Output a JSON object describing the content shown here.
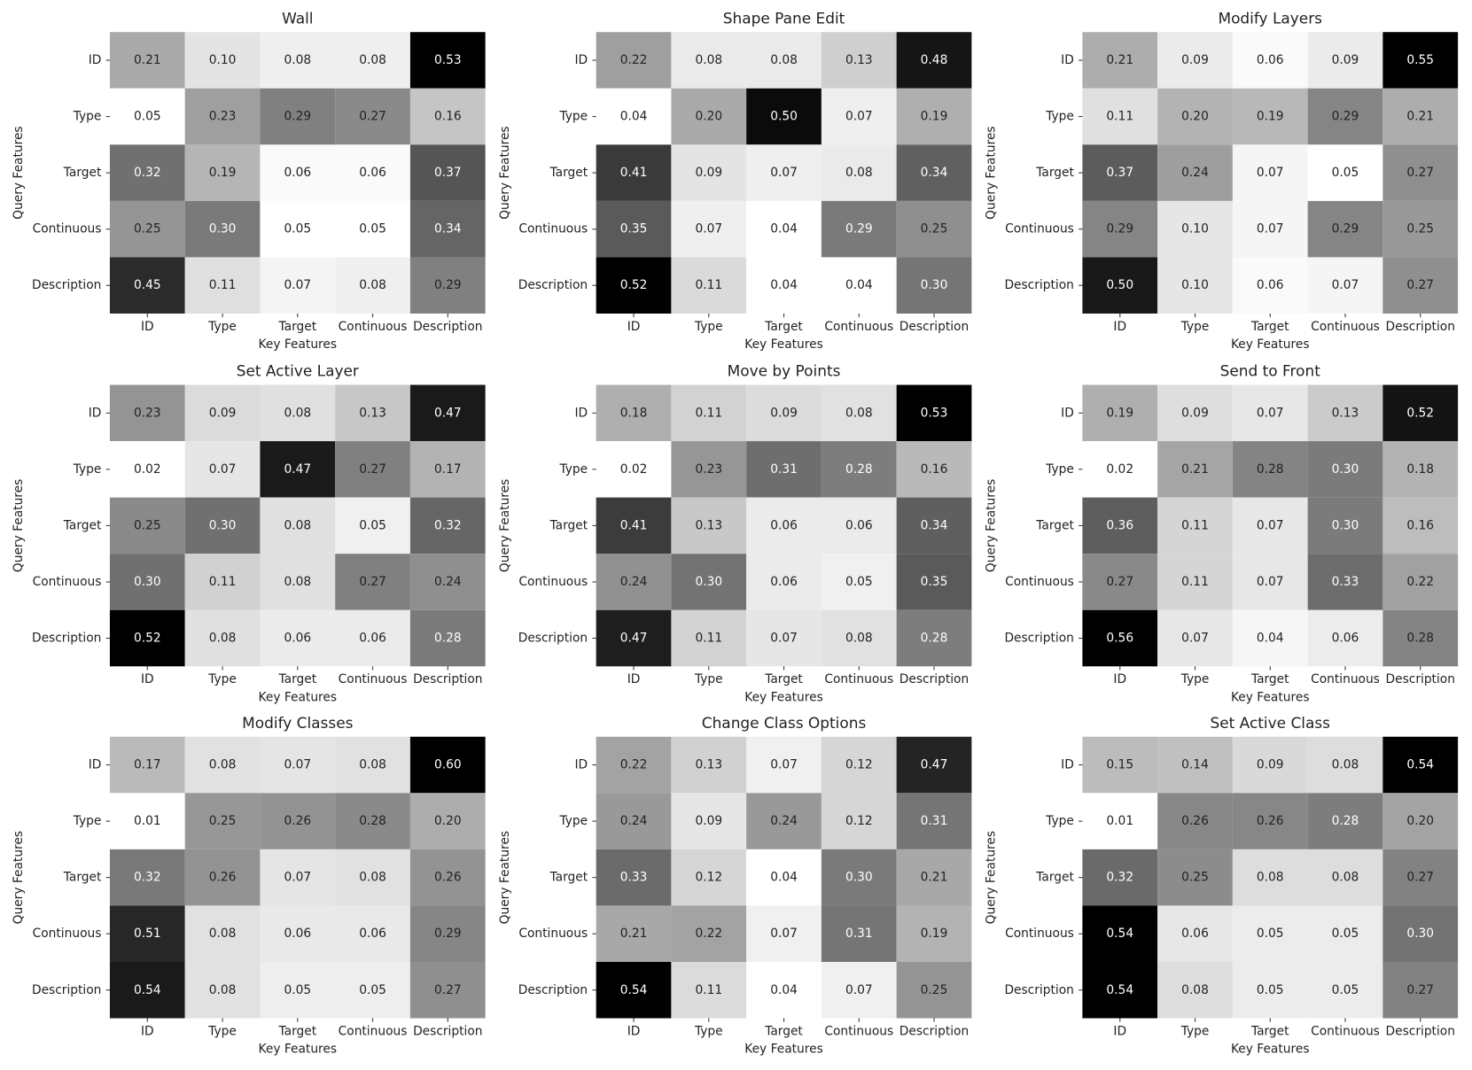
{
  "chart_data": [
    {
      "type": "heatmap",
      "title": "Wall",
      "xlabel": "Key Features",
      "ylabel": "Query Features",
      "x_categories": [
        "ID",
        "Type",
        "Target",
        "Continuous",
        "Description"
      ],
      "y_categories": [
        "ID",
        "Type",
        "Target",
        "Continuous",
        "Description"
      ],
      "values": [
        [
          0.21,
          0.1,
          0.08,
          0.08,
          0.53
        ],
        [
          0.05,
          0.23,
          0.29,
          0.27,
          0.16
        ],
        [
          0.32,
          0.19,
          0.06,
          0.06,
          0.37
        ],
        [
          0.25,
          0.3,
          0.05,
          0.05,
          0.34
        ],
        [
          0.45,
          0.11,
          0.07,
          0.08,
          0.29
        ]
      ],
      "value_labels": [
        [
          "0.21",
          "0.10",
          "0.08",
          "0.08",
          "0.53"
        ],
        [
          "0.05",
          "0.23",
          "0.29",
          "0.27",
          "0.16"
        ],
        [
          "0.32",
          "0.19",
          "0.06",
          "0.06",
          "0.37"
        ],
        [
          "0.25",
          "0.30",
          "0.05",
          "0.05",
          "0.34"
        ],
        [
          "0.45",
          "0.11",
          "0.07",
          "0.08",
          "0.29"
        ]
      ],
      "colormap": "Greys"
    },
    {
      "type": "heatmap",
      "title": "Shape Pane Edit",
      "xlabel": "Key Features",
      "ylabel": "Query Features",
      "x_categories": [
        "ID",
        "Type",
        "Target",
        "Continuous",
        "Description"
      ],
      "y_categories": [
        "ID",
        "Type",
        "Target",
        "Continuous",
        "Description"
      ],
      "values": [
        [
          0.22,
          0.08,
          0.08,
          0.13,
          0.48
        ],
        [
          0.04,
          0.2,
          0.5,
          0.07,
          0.19
        ],
        [
          0.41,
          0.09,
          0.07,
          0.08,
          0.34
        ],
        [
          0.35,
          0.07,
          0.04,
          0.29,
          0.25
        ],
        [
          0.52,
          0.11,
          0.04,
          0.04,
          0.3
        ]
      ],
      "value_labels": [
        [
          "0.22",
          "0.08",
          "0.08",
          "0.13",
          "0.48"
        ],
        [
          "0.04",
          "0.20",
          "0.50",
          "0.07",
          "0.19"
        ],
        [
          "0.41",
          "0.09",
          "0.07",
          "0.08",
          "0.34"
        ],
        [
          "0.35",
          "0.07",
          "0.04",
          "0.29",
          "0.25"
        ],
        [
          "0.52",
          "0.11",
          "0.04",
          "0.04",
          "0.30"
        ]
      ],
      "colormap": "Greys"
    },
    {
      "type": "heatmap",
      "title": "Modify Layers",
      "xlabel": "Key Features",
      "ylabel": "Query Features",
      "x_categories": [
        "ID",
        "Type",
        "Target",
        "Continuous",
        "Description"
      ],
      "y_categories": [
        "ID",
        "Type",
        "Target",
        "Continuous",
        "Description"
      ],
      "values": [
        [
          0.21,
          0.09,
          0.06,
          0.09,
          0.55
        ],
        [
          0.11,
          0.2,
          0.19,
          0.29,
          0.21
        ],
        [
          0.37,
          0.24,
          0.07,
          0.05,
          0.27
        ],
        [
          0.29,
          0.1,
          0.07,
          0.29,
          0.25
        ],
        [
          0.5,
          0.1,
          0.06,
          0.07,
          0.27
        ]
      ],
      "value_labels": [
        [
          "0.21",
          "0.09",
          "0.06",
          "0.09",
          "0.55"
        ],
        [
          "0.11",
          "0.20",
          "0.19",
          "0.29",
          "0.21"
        ],
        [
          "0.37",
          "0.24",
          "0.07",
          "0.05",
          "0.27"
        ],
        [
          "0.29",
          "0.10",
          "0.07",
          "0.29",
          "0.25"
        ],
        [
          "0.50",
          "0.10",
          "0.06",
          "0.07",
          "0.27"
        ]
      ],
      "colormap": "Greys"
    },
    {
      "type": "heatmap",
      "title": "Set Active Layer",
      "xlabel": "Key Features",
      "ylabel": "Query Features",
      "x_categories": [
        "ID",
        "Type",
        "Target",
        "Continuous",
        "Description"
      ],
      "y_categories": [
        "ID",
        "Type",
        "Target",
        "Continuous",
        "Description"
      ],
      "values": [
        [
          0.23,
          0.09,
          0.08,
          0.13,
          0.47
        ],
        [
          0.02,
          0.07,
          0.47,
          0.27,
          0.17
        ],
        [
          0.25,
          0.3,
          0.08,
          0.05,
          0.32
        ],
        [
          0.3,
          0.11,
          0.08,
          0.27,
          0.24
        ],
        [
          0.52,
          0.08,
          0.06,
          0.06,
          0.28
        ]
      ],
      "value_labels": [
        [
          "0.23",
          "0.09",
          "0.08",
          "0.13",
          "0.47"
        ],
        [
          "0.02",
          "0.07",
          "0.47",
          "0.27",
          "0.17"
        ],
        [
          "0.25",
          "0.30",
          "0.08",
          "0.05",
          "0.32"
        ],
        [
          "0.30",
          "0.11",
          "0.08",
          "0.27",
          "0.24"
        ],
        [
          "0.52",
          "0.08",
          "0.06",
          "0.06",
          "0.28"
        ]
      ],
      "colormap": "Greys"
    },
    {
      "type": "heatmap",
      "title": "Move by Points",
      "xlabel": "Key Features",
      "ylabel": "Query Features",
      "x_categories": [
        "ID",
        "Type",
        "Target",
        "Continuous",
        "Description"
      ],
      "y_categories": [
        "ID",
        "Type",
        "Target",
        "Continuous",
        "Description"
      ],
      "values": [
        [
          0.18,
          0.11,
          0.09,
          0.08,
          0.53
        ],
        [
          0.02,
          0.23,
          0.31,
          0.28,
          0.16
        ],
        [
          0.41,
          0.13,
          0.06,
          0.06,
          0.34
        ],
        [
          0.24,
          0.3,
          0.06,
          0.05,
          0.35
        ],
        [
          0.47,
          0.11,
          0.07,
          0.08,
          0.28
        ]
      ],
      "value_labels": [
        [
          "0.18",
          "0.11",
          "0.09",
          "0.08",
          "0.53"
        ],
        [
          "0.02",
          "0.23",
          "0.31",
          "0.28",
          "0.16"
        ],
        [
          "0.41",
          "0.13",
          "0.06",
          "0.06",
          "0.34"
        ],
        [
          "0.24",
          "0.30",
          "0.06",
          "0.05",
          "0.35"
        ],
        [
          "0.47",
          "0.11",
          "0.07",
          "0.08",
          "0.28"
        ]
      ],
      "colormap": "Greys"
    },
    {
      "type": "heatmap",
      "title": "Send to Front",
      "xlabel": "Key Features",
      "ylabel": "Query Features",
      "x_categories": [
        "ID",
        "Type",
        "Target",
        "Continuous",
        "Description"
      ],
      "y_categories": [
        "ID",
        "Type",
        "Target",
        "Continuous",
        "Description"
      ],
      "values": [
        [
          0.19,
          0.09,
          0.07,
          0.13,
          0.52
        ],
        [
          0.02,
          0.21,
          0.28,
          0.3,
          0.18
        ],
        [
          0.36,
          0.11,
          0.07,
          0.3,
          0.16
        ],
        [
          0.27,
          0.11,
          0.07,
          0.33,
          0.22
        ],
        [
          0.56,
          0.07,
          0.04,
          0.06,
          0.28
        ]
      ],
      "value_labels": [
        [
          "0.19",
          "0.09",
          "0.07",
          "0.13",
          "0.52"
        ],
        [
          "0.02",
          "0.21",
          "0.28",
          "0.30",
          "0.18"
        ],
        [
          "0.36",
          "0.11",
          "0.07",
          "0.30",
          "0.16"
        ],
        [
          "0.27",
          "0.11",
          "0.07",
          "0.33",
          "0.22"
        ],
        [
          "0.56",
          "0.07",
          "0.04",
          "0.06",
          "0.28"
        ]
      ],
      "colormap": "Greys"
    },
    {
      "type": "heatmap",
      "title": "Modify Classes",
      "xlabel": "Key Features",
      "ylabel": "Query Features",
      "x_categories": [
        "ID",
        "Type",
        "Target",
        "Continuous",
        "Description"
      ],
      "y_categories": [
        "ID",
        "Type",
        "Target",
        "Continuous",
        "Description"
      ],
      "values": [
        [
          0.17,
          0.08,
          0.07,
          0.08,
          0.6
        ],
        [
          0.01,
          0.25,
          0.26,
          0.28,
          0.2
        ],
        [
          0.32,
          0.26,
          0.07,
          0.08,
          0.26
        ],
        [
          0.51,
          0.08,
          0.06,
          0.06,
          0.29
        ],
        [
          0.54,
          0.08,
          0.05,
          0.05,
          0.27
        ]
      ],
      "value_labels": [
        [
          "0.17",
          "0.08",
          "0.07",
          "0.08",
          "0.60"
        ],
        [
          "0.01",
          "0.25",
          "0.26",
          "0.28",
          "0.20"
        ],
        [
          "0.32",
          "0.26",
          "0.07",
          "0.08",
          "0.26"
        ],
        [
          "0.51",
          "0.08",
          "0.06",
          "0.06",
          "0.29"
        ],
        [
          "0.54",
          "0.08",
          "0.05",
          "0.05",
          "0.27"
        ]
      ],
      "colormap": "Greys"
    },
    {
      "type": "heatmap",
      "title": "Change Class Options",
      "xlabel": "Key Features",
      "ylabel": "Query Features",
      "x_categories": [
        "ID",
        "Type",
        "Target",
        "Continuous",
        "Description"
      ],
      "y_categories": [
        "ID",
        "Type",
        "Target",
        "Continuous",
        "Description"
      ],
      "values": [
        [
          0.22,
          0.13,
          0.07,
          0.12,
          0.47
        ],
        [
          0.24,
          0.09,
          0.24,
          0.12,
          0.31
        ],
        [
          0.33,
          0.12,
          0.04,
          0.3,
          0.21
        ],
        [
          0.21,
          0.22,
          0.07,
          0.31,
          0.19
        ],
        [
          0.54,
          0.11,
          0.04,
          0.07,
          0.25
        ]
      ],
      "value_labels": [
        [
          "0.22",
          "0.13",
          "0.07",
          "0.12",
          "0.47"
        ],
        [
          "0.24",
          "0.09",
          "0.24",
          "0.12",
          "0.31"
        ],
        [
          "0.33",
          "0.12",
          "0.04",
          "0.30",
          "0.21"
        ],
        [
          "0.21",
          "0.22",
          "0.07",
          "0.31",
          "0.19"
        ],
        [
          "0.54",
          "0.11",
          "0.04",
          "0.07",
          "0.25"
        ]
      ],
      "colormap": "Greys"
    },
    {
      "type": "heatmap",
      "title": "Set Active Class",
      "xlabel": "Key Features",
      "ylabel": "Query Features",
      "x_categories": [
        "ID",
        "Type",
        "Target",
        "Continuous",
        "Description"
      ],
      "y_categories": [
        "ID",
        "Type",
        "Target",
        "Continuous",
        "Description"
      ],
      "values": [
        [
          0.15,
          0.14,
          0.09,
          0.08,
          0.54
        ],
        [
          0.01,
          0.26,
          0.26,
          0.28,
          0.2
        ],
        [
          0.32,
          0.25,
          0.08,
          0.08,
          0.27
        ],
        [
          0.54,
          0.06,
          0.05,
          0.05,
          0.3
        ],
        [
          0.54,
          0.08,
          0.05,
          0.05,
          0.27
        ]
      ],
      "value_labels": [
        [
          "0.15",
          "0.14",
          "0.09",
          "0.08",
          "0.54"
        ],
        [
          "0.01",
          "0.26",
          "0.26",
          "0.28",
          "0.20"
        ],
        [
          "0.32",
          "0.25",
          "0.08",
          "0.08",
          "0.27"
        ],
        [
          "0.54",
          "0.06",
          "0.05",
          "0.05",
          "0.30"
        ],
        [
          "0.54",
          "0.08",
          "0.05",
          "0.05",
          "0.27"
        ]
      ],
      "colormap": "Greys"
    }
  ]
}
